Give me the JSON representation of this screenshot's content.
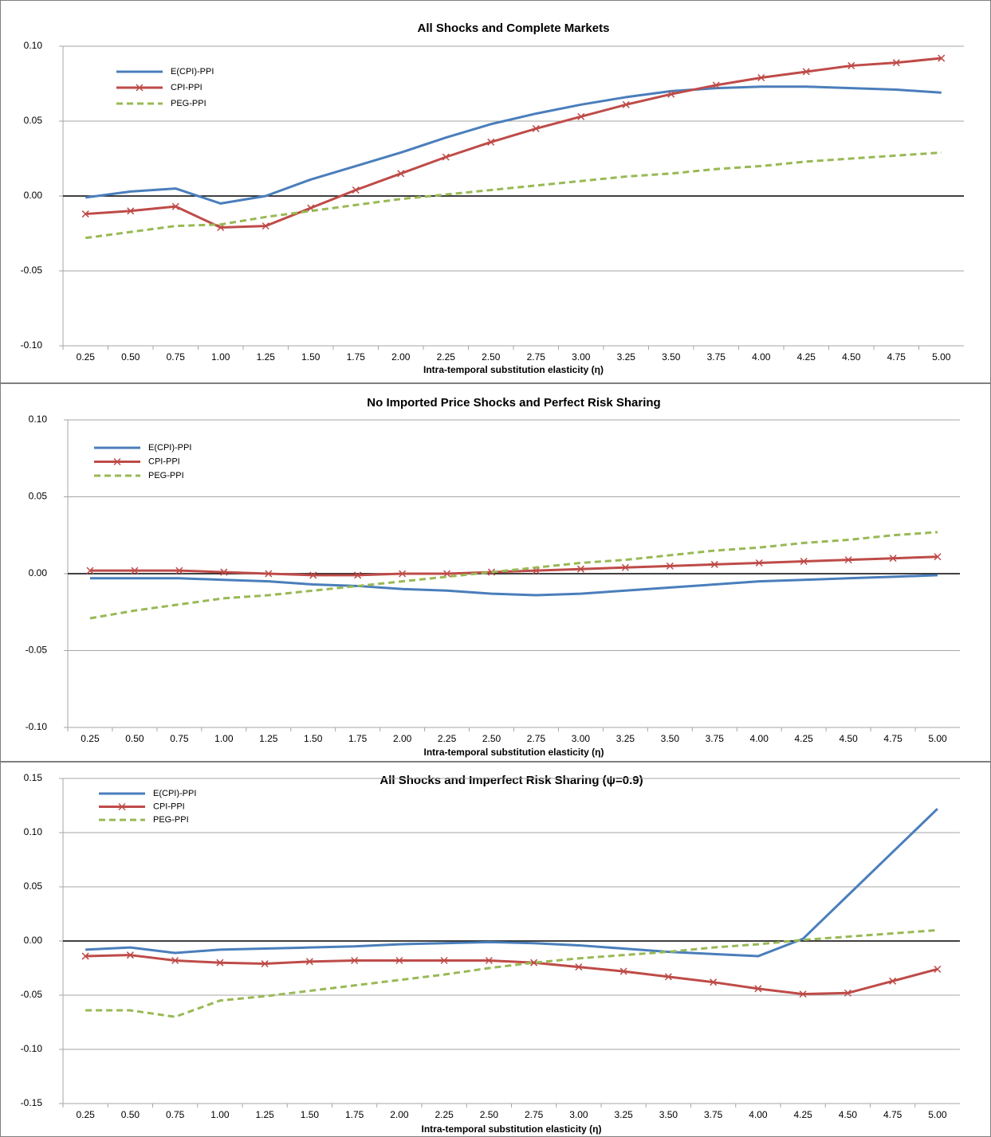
{
  "chart_data": [
    {
      "type": "line",
      "title": "All Shocks and Complete Markets",
      "x_label": "Intra-temporal substitution elasticity (η)",
      "categories": [
        "0.25",
        "0.50",
        "0.75",
        "1.00",
        "1.25",
        "1.50",
        "1.75",
        "2.00",
        "2.25",
        "2.50",
        "2.75",
        "3.00",
        "3.25",
        "3.50",
        "3.75",
        "4.00",
        "4.25",
        "4.50",
        "4.75",
        "5.00"
      ],
      "ylim": [
        -0.1,
        0.1
      ],
      "yticks": [
        {
          "value": -0.1,
          "label": "-0.10"
        },
        {
          "value": -0.05,
          "label": "-0.05"
        },
        {
          "value": 0,
          "label": "0.00"
        },
        {
          "value": 0.05,
          "label": "0.05"
        },
        {
          "value": 0.1,
          "label": "0.10"
        }
      ],
      "grid": true,
      "series": [
        {
          "name": "E(CPI)-PPI",
          "color": "#4a7ebb",
          "marker": "none",
          "dashed": false,
          "values": [
            -0.001,
            0.003,
            0.005,
            -0.005,
            0.0,
            0.011,
            0.02,
            0.029,
            0.039,
            0.048,
            0.055,
            0.061,
            0.066,
            0.07,
            0.072,
            0.073,
            0.073,
            0.072,
            0.071,
            0.069
          ]
        },
        {
          "name": "CPI-PPI",
          "color": "#be4b48",
          "marker": "x",
          "dashed": false,
          "values": [
            -0.012,
            -0.01,
            -0.007,
            -0.021,
            -0.02,
            -0.008,
            0.004,
            0.015,
            0.026,
            0.036,
            0.045,
            0.053,
            0.061,
            0.068,
            0.074,
            0.079,
            0.083,
            0.087,
            0.089,
            0.092
          ]
        },
        {
          "name": "PEG-PPI",
          "color": "#98b954",
          "marker": "none",
          "dashed": true,
          "values": [
            -0.028,
            -0.024,
            -0.02,
            -0.019,
            -0.014,
            -0.01,
            -0.006,
            -0.002,
            0.001,
            0.004,
            0.007,
            0.01,
            0.013,
            0.015,
            0.018,
            0.02,
            0.023,
            0.025,
            0.027,
            0.029
          ]
        }
      ]
    },
    {
      "type": "line",
      "title": "No Imported Price Shocks and Perfect Risk Sharing",
      "x_label": "Intra-temporal substitution elasticity (η)",
      "categories": [
        "0.25",
        "0.50",
        "0.75",
        "1.00",
        "1.25",
        "1.50",
        "1.75",
        "2.00",
        "2.25",
        "2.50",
        "2.75",
        "3.00",
        "3.25",
        "3.50",
        "3.75",
        "4.00",
        "4.25",
        "4.50",
        "4.75",
        "5.00"
      ],
      "ylim": [
        -0.1,
        0.1
      ],
      "yticks": [
        {
          "value": -0.1,
          "label": "-0.10"
        },
        {
          "value": -0.05,
          "label": "-0.05"
        },
        {
          "value": 0,
          "label": "0.00"
        },
        {
          "value": 0.05,
          "label": "0.05"
        },
        {
          "value": 0.1,
          "label": "0.10"
        }
      ],
      "grid": true,
      "series": [
        {
          "name": "E(CPI)-PPI",
          "color": "#4a7ebb",
          "marker": "none",
          "dashed": false,
          "values": [
            -0.003,
            -0.003,
            -0.003,
            -0.004,
            -0.005,
            -0.007,
            -0.008,
            -0.01,
            -0.011,
            -0.013,
            -0.014,
            -0.013,
            -0.011,
            -0.009,
            -0.007,
            -0.005,
            -0.004,
            -0.003,
            -0.002,
            -0.001
          ]
        },
        {
          "name": "CPI-PPI",
          "color": "#be4b48",
          "marker": "x",
          "dashed": false,
          "values": [
            0.002,
            0.002,
            0.002,
            0.001,
            0.0,
            -0.001,
            -0.001,
            0.0,
            0.0,
            0.001,
            0.002,
            0.003,
            0.004,
            0.005,
            0.006,
            0.007,
            0.008,
            0.009,
            0.01,
            0.011
          ]
        },
        {
          "name": "PEG-PPI",
          "color": "#98b954",
          "marker": "none",
          "dashed": true,
          "values": [
            -0.029,
            -0.024,
            -0.02,
            -0.016,
            -0.014,
            -0.011,
            -0.008,
            -0.005,
            -0.002,
            0.001,
            0.004,
            0.007,
            0.009,
            0.012,
            0.015,
            0.017,
            0.02,
            0.022,
            0.025,
            0.027
          ]
        }
      ]
    },
    {
      "type": "line",
      "title": "All Shocks and Imperfect Risk Sharing (ψ=0.9)",
      "x_label": "Intra-temporal substitution elasticity (η)",
      "categories": [
        "0.25",
        "0.50",
        "0.75",
        "1.00",
        "1.25",
        "1.50",
        "1.75",
        "2.00",
        "2.25",
        "2.50",
        "2.75",
        "3.00",
        "3.25",
        "3.50",
        "3.75",
        "4.00",
        "4.25",
        "4.50",
        "4.75",
        "5.00"
      ],
      "ylim": [
        -0.15,
        0.15
      ],
      "yticks": [
        {
          "value": -0.15,
          "label": "-0.15"
        },
        {
          "value": -0.1,
          "label": "-0.10"
        },
        {
          "value": -0.05,
          "label": "-0.05"
        },
        {
          "value": 0,
          "label": "0.00"
        },
        {
          "value": 0.05,
          "label": "0.05"
        },
        {
          "value": 0.1,
          "label": "0.10"
        },
        {
          "value": 0.15,
          "label": "0.15"
        }
      ],
      "grid": true,
      "series": [
        {
          "name": "E(CPI)-PPI",
          "color": "#4a7ebb",
          "marker": "none",
          "dashed": false,
          "values": [
            -0.008,
            -0.006,
            -0.011,
            -0.008,
            -0.007,
            -0.006,
            -0.005,
            -0.003,
            -0.002,
            -0.001,
            -0.002,
            -0.004,
            -0.007,
            -0.01,
            -0.012,
            -0.014,
            0.002,
            0.042,
            0.082,
            0.122
          ]
        },
        {
          "name": "CPI-PPI",
          "color": "#be4b48",
          "marker": "x",
          "dashed": false,
          "values": [
            -0.014,
            -0.013,
            -0.018,
            -0.02,
            -0.021,
            -0.019,
            -0.018,
            -0.018,
            -0.018,
            -0.018,
            -0.02,
            -0.024,
            -0.028,
            -0.033,
            -0.038,
            -0.044,
            -0.049,
            -0.048,
            -0.037,
            -0.026
          ]
        },
        {
          "name": "PEG-PPI",
          "color": "#98b954",
          "marker": "none",
          "dashed": true,
          "values": [
            -0.064,
            -0.064,
            -0.07,
            -0.055,
            -0.051,
            -0.046,
            -0.041,
            -0.036,
            -0.031,
            -0.025,
            -0.02,
            -0.016,
            -0.013,
            -0.01,
            -0.006,
            -0.003,
            0.001,
            0.004,
            0.007,
            0.01
          ]
        }
      ]
    }
  ]
}
